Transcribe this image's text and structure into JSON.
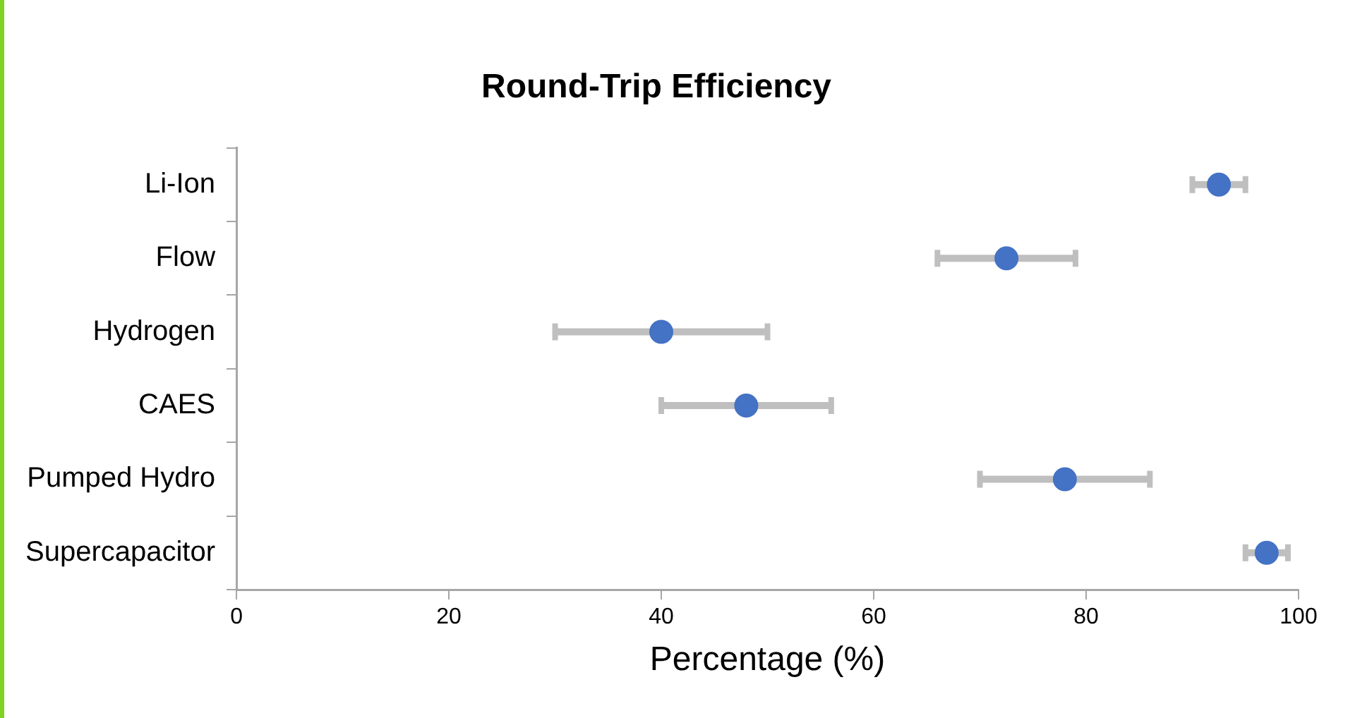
{
  "chart_data": {
    "type": "scatter",
    "title": "Round-Trip Efficiency",
    "xlabel": "Percentage (%)",
    "categories": [
      "Li-Ion",
      "Flow",
      "Hydrogen",
      "CAES",
      "Pumped Hydro",
      "Supercapacitor"
    ],
    "values": [
      92.5,
      72.5,
      40,
      48,
      78,
      97
    ],
    "errors": [
      [
        90,
        95
      ],
      [
        66,
        79
      ],
      [
        30,
        50
      ],
      [
        40,
        56
      ],
      [
        70,
        86
      ],
      [
        95,
        99
      ]
    ],
    "color": "#4472c4",
    "orientation": "horizontal",
    "marker": "circle",
    "xlim": [
      0,
      100
    ],
    "xticks": [
      0,
      20,
      40,
      60,
      80,
      100
    ]
  }
}
